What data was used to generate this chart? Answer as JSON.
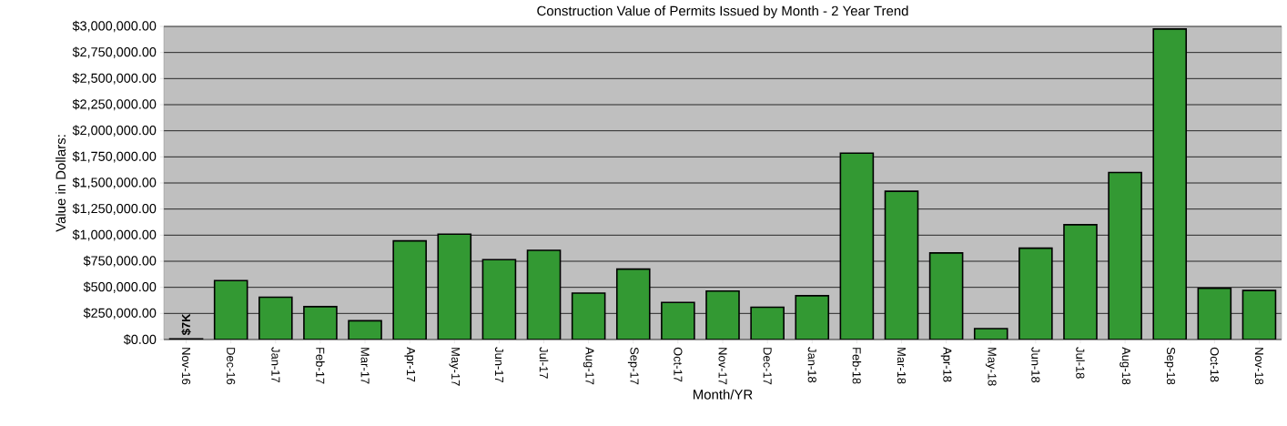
{
  "chart_data": {
    "type": "bar",
    "title": "Construction Value of Permits Issued by Month - 2 Year Trend",
    "xlabel": "Month/YR",
    "ylabel": "Value in Dollars:",
    "categories": [
      "Nov-16",
      "Dec-16",
      "Jan-17",
      "Feb-17",
      "Mar-17",
      "Apr-17",
      "May-17",
      "Jun-17",
      "Jul-17",
      "Aug-17",
      "Sep-17",
      "Oct-17",
      "Nov-17",
      "Dec-17",
      "Jan-18",
      "Feb-18",
      "Mar-18",
      "Apr-18",
      "May-18",
      "Jun-18",
      "Jul-18",
      "Aug-18",
      "Sep-18",
      "Oct-18",
      "Nov-18"
    ],
    "values": [
      7000,
      565000,
      405000,
      315000,
      180000,
      945000,
      1010000,
      765000,
      855000,
      445000,
      675000,
      355000,
      465000,
      310000,
      420000,
      1785000,
      1420000,
      830000,
      105000,
      875000,
      1100000,
      1600000,
      2975000,
      490000,
      470000
    ],
    "color": "#339933",
    "ylim": [
      0,
      3000000
    ],
    "yticks": [
      {
        "value": 0,
        "label": "$0.00"
      },
      {
        "value": 250000,
        "label": "$250,000.00"
      },
      {
        "value": 500000,
        "label": "$500,000.00"
      },
      {
        "value": 750000,
        "label": "$750,000.00"
      },
      {
        "value": 1000000,
        "label": "$1,000,000.00"
      },
      {
        "value": 1250000,
        "label": "$1,250,000.00"
      },
      {
        "value": 1500000,
        "label": "$1,500,000.00"
      },
      {
        "value": 1750000,
        "label": "$1,750,000.00"
      },
      {
        "value": 2000000,
        "label": "$2,000,000.00"
      },
      {
        "value": 2250000,
        "label": "$2,250,000.00"
      },
      {
        "value": 2500000,
        "label": "$2,500,000.00"
      },
      {
        "value": 2750000,
        "label": "$2,750,000.00"
      },
      {
        "value": 3000000,
        "label": "$3,000,000.00"
      }
    ],
    "grid": "y",
    "annotations": [
      {
        "text": "$7K",
        "x": "Nov-16",
        "y": 7000
      }
    ]
  }
}
